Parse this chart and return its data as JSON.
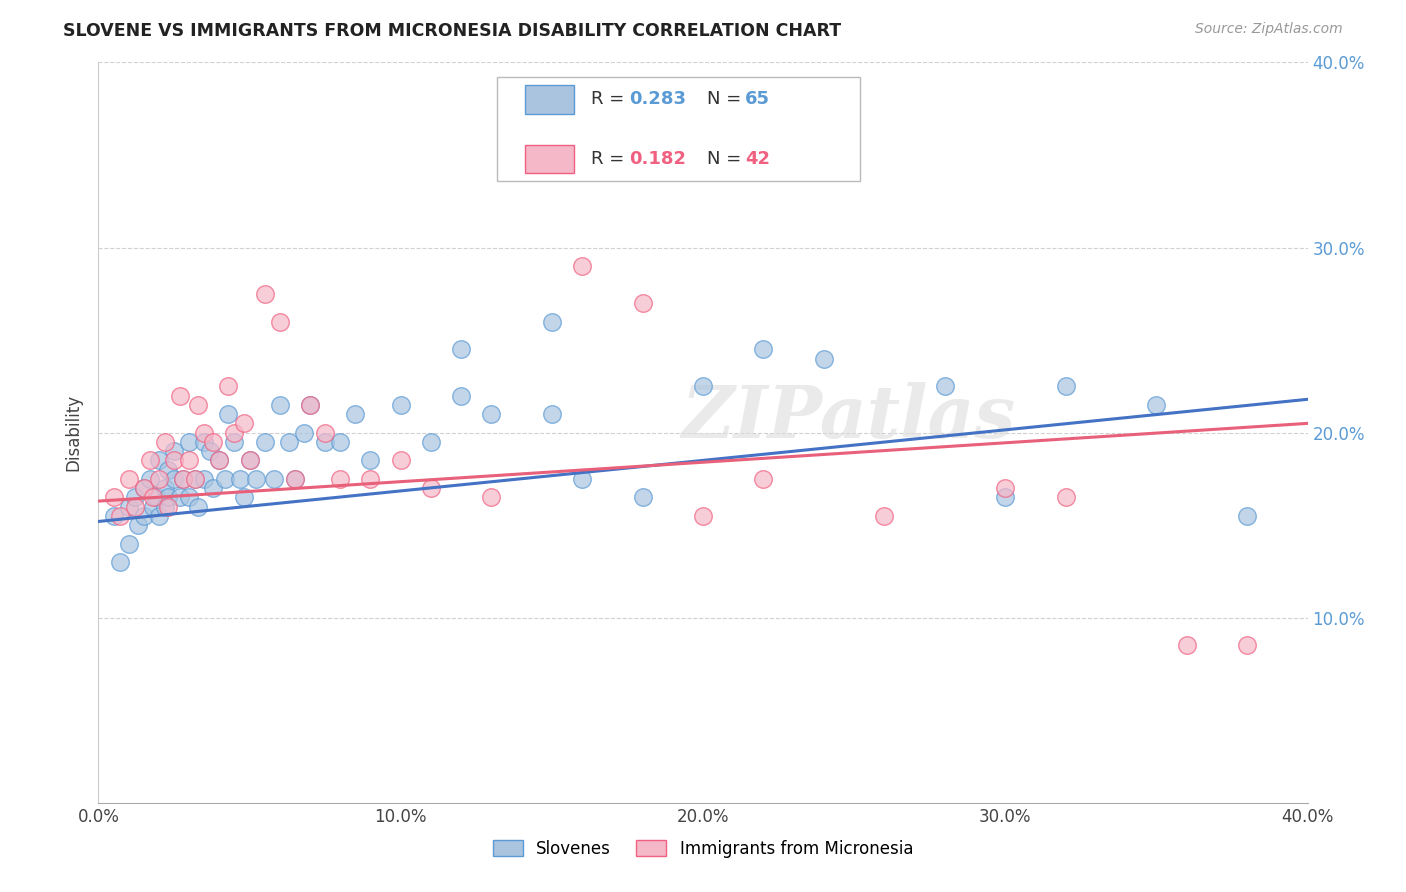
{
  "title": "SLOVENE VS IMMIGRANTS FROM MICRONESIA DISABILITY CORRELATION CHART",
  "source": "Source: ZipAtlas.com",
  "ylabel": "Disability",
  "xlim": [
    0.0,
    0.4
  ],
  "ylim": [
    0.0,
    0.4
  ],
  "xticks": [
    0.0,
    0.1,
    0.2,
    0.3,
    0.4
  ],
  "yticks": [
    0.1,
    0.2,
    0.3,
    0.4
  ],
  "xtick_labels": [
    "0.0%",
    "10.0%",
    "20.0%",
    "30.0%",
    "40.0%"
  ],
  "ytick_labels": [
    "10.0%",
    "20.0%",
    "30.0%",
    "40.0%"
  ],
  "blue_R": 0.283,
  "blue_N": 65,
  "pink_R": 0.182,
  "pink_N": 42,
  "blue_color": "#aac4e0",
  "pink_color": "#f5b8c8",
  "blue_edge_color": "#5b9bd5",
  "pink_edge_color": "#f06080",
  "blue_line_color": "#4472c4",
  "pink_line_color": "#e8607a",
  "legend_blue_label": "Slovenes",
  "legend_pink_label": "Immigrants from Micronesia",
  "background_color": "#ffffff",
  "watermark": "ZIPatlas",
  "blue_x": [
    0.005,
    0.007,
    0.01,
    0.01,
    0.012,
    0.013,
    0.015,
    0.015,
    0.017,
    0.018,
    0.019,
    0.02,
    0.02,
    0.022,
    0.022,
    0.023,
    0.023,
    0.025,
    0.025,
    0.027,
    0.028,
    0.03,
    0.03,
    0.032,
    0.033,
    0.035,
    0.035,
    0.037,
    0.038,
    0.04,
    0.042,
    0.043,
    0.045,
    0.047,
    0.048,
    0.05,
    0.052,
    0.055,
    0.058,
    0.06,
    0.063,
    0.065,
    0.068,
    0.07,
    0.075,
    0.08,
    0.085,
    0.09,
    0.1,
    0.11,
    0.12,
    0.13,
    0.15,
    0.16,
    0.18,
    0.2,
    0.22,
    0.24,
    0.28,
    0.3,
    0.32,
    0.35,
    0.38,
    0.15,
    0.12
  ],
  "blue_y": [
    0.155,
    0.13,
    0.16,
    0.14,
    0.165,
    0.15,
    0.17,
    0.155,
    0.175,
    0.16,
    0.165,
    0.155,
    0.185,
    0.17,
    0.16,
    0.18,
    0.165,
    0.175,
    0.19,
    0.165,
    0.175,
    0.165,
    0.195,
    0.175,
    0.16,
    0.195,
    0.175,
    0.19,
    0.17,
    0.185,
    0.175,
    0.21,
    0.195,
    0.175,
    0.165,
    0.185,
    0.175,
    0.195,
    0.175,
    0.215,
    0.195,
    0.175,
    0.2,
    0.215,
    0.195,
    0.195,
    0.21,
    0.185,
    0.215,
    0.195,
    0.22,
    0.21,
    0.21,
    0.175,
    0.165,
    0.225,
    0.245,
    0.24,
    0.225,
    0.165,
    0.225,
    0.215,
    0.155,
    0.26,
    0.245
  ],
  "pink_x": [
    0.005,
    0.007,
    0.01,
    0.012,
    0.015,
    0.017,
    0.018,
    0.02,
    0.022,
    0.023,
    0.025,
    0.027,
    0.028,
    0.03,
    0.032,
    0.033,
    0.035,
    0.038,
    0.04,
    0.043,
    0.045,
    0.048,
    0.05,
    0.055,
    0.06,
    0.065,
    0.07,
    0.075,
    0.08,
    0.09,
    0.1,
    0.11,
    0.13,
    0.16,
    0.18,
    0.2,
    0.22,
    0.26,
    0.3,
    0.32,
    0.36,
    0.38
  ],
  "pink_y": [
    0.165,
    0.155,
    0.175,
    0.16,
    0.17,
    0.185,
    0.165,
    0.175,
    0.195,
    0.16,
    0.185,
    0.22,
    0.175,
    0.185,
    0.175,
    0.215,
    0.2,
    0.195,
    0.185,
    0.225,
    0.2,
    0.205,
    0.185,
    0.275,
    0.26,
    0.175,
    0.215,
    0.2,
    0.175,
    0.175,
    0.185,
    0.17,
    0.165,
    0.29,
    0.27,
    0.155,
    0.175,
    0.155,
    0.17,
    0.165,
    0.085,
    0.085
  ],
  "blue_intercept": 0.152,
  "blue_slope": 0.165,
  "pink_intercept": 0.163,
  "pink_slope": 0.105
}
